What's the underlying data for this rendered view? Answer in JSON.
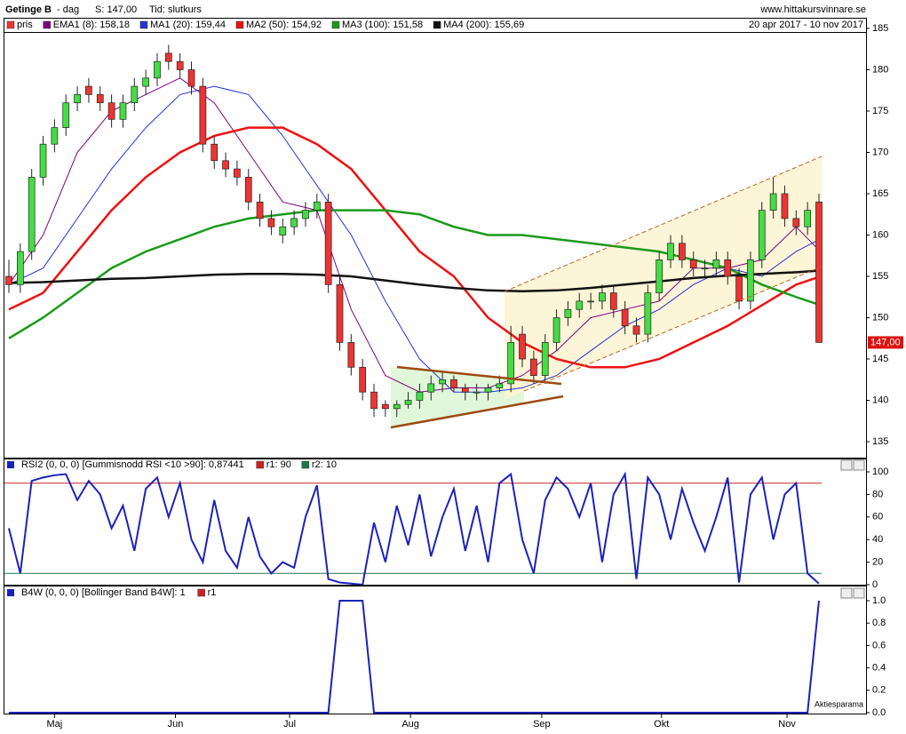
{
  "chart_data": [
    {
      "type": "candlestick",
      "title": "Getinge B",
      "subtitle": "- dag",
      "price_text": "S: 147,00",
      "mode_text": "Tid: slutkurs",
      "source": "www.hittakursvinnare.se",
      "date_range": "20 apr 2017 - 10 nov 2017",
      "name": "pris",
      "up_color": "#44dd44",
      "down_color": "#ee3333",
      "last_label": "147,00",
      "xlim": [
        0,
        71
      ],
      "ylim": [
        135,
        185
      ],
      "yticks": [
        135,
        140,
        145,
        150,
        155,
        160,
        165,
        170,
        175,
        180,
        185
      ],
      "open": [
        155,
        154,
        158,
        167,
        171,
        173,
        176,
        178,
        177,
        176,
        174,
        176,
        178,
        179,
        182,
        181,
        180,
        178,
        171,
        169,
        168,
        167,
        164,
        162,
        160,
        161,
        162,
        163,
        164,
        154,
        147,
        144,
        141,
        139.5,
        139,
        139.5,
        140,
        141,
        142,
        142.5,
        141.5,
        141,
        141,
        141.5,
        142,
        148,
        145,
        143,
        147,
        150,
        151,
        152,
        152,
        153,
        151,
        149,
        148,
        153,
        157,
        159,
        157,
        156,
        156,
        157,
        155,
        152,
        157,
        163,
        165,
        162,
        161,
        164
      ],
      "high": [
        157,
        159,
        168,
        172,
        174,
        177,
        178,
        179,
        178,
        177,
        177,
        179,
        180,
        182,
        183,
        182,
        181,
        179,
        172,
        170,
        169,
        168,
        165,
        163,
        162,
        163,
        164,
        165,
        165,
        155,
        148,
        145,
        142,
        140,
        140,
        141,
        142,
        143,
        143.5,
        143,
        142,
        142,
        142,
        143,
        149,
        149,
        146,
        148,
        151,
        152,
        153,
        153,
        154,
        154,
        152,
        150,
        154,
        158,
        160,
        160,
        158,
        157,
        158,
        158,
        156,
        158,
        164,
        167,
        166,
        163,
        164,
        165
      ],
      "low": [
        153,
        153,
        157,
        166,
        170,
        172,
        175,
        176,
        175,
        173,
        173,
        175,
        177,
        178,
        180,
        179,
        177,
        170,
        168,
        167,
        166,
        163,
        161,
        160,
        159,
        160,
        161,
        162,
        153,
        146,
        143,
        140,
        138,
        138,
        138,
        139,
        139,
        140,
        141,
        141,
        140,
        140,
        140,
        141,
        141,
        144,
        142,
        142,
        146,
        149,
        150,
        151,
        151,
        150,
        148,
        147,
        147,
        152,
        156,
        156,
        155,
        155,
        155,
        154,
        151,
        151,
        156,
        162,
        161,
        160,
        160,
        147
      ],
      "close": [
        154,
        158,
        167,
        171,
        173,
        176,
        177,
        177,
        176,
        174,
        176,
        178,
        179,
        181,
        181,
        180,
        178,
        171,
        169,
        168,
        167,
        164,
        162,
        161,
        161,
        162,
        163,
        164,
        154,
        147,
        144,
        141,
        139,
        139,
        139.5,
        140,
        141,
        142,
        142.5,
        141.5,
        141,
        141,
        141.5,
        142,
        147,
        145,
        143,
        147,
        150,
        151,
        152,
        152,
        153,
        151,
        149,
        148,
        153,
        157,
        159,
        157,
        156,
        156,
        157,
        155,
        152,
        157,
        163,
        165,
        162,
        161,
        163,
        147
      ],
      "series": [
        {
          "name": "EMA1 (8): 158,18",
          "color": "#800080",
          "x": [
            0,
            3,
            6,
            9,
            12,
            15,
            18,
            21,
            24,
            27,
            30,
            33,
            36,
            39,
            42,
            45,
            48,
            51,
            54,
            57,
            60,
            63,
            66,
            69,
            71
          ],
          "values": [
            154,
            160,
            170,
            175,
            177,
            179,
            176,
            170,
            164,
            163,
            151,
            143,
            141,
            141.5,
            141.5,
            143,
            146,
            150,
            151,
            152,
            156,
            156,
            157,
            161,
            158.18
          ]
        },
        {
          "name": "MA1 (20): 159,44",
          "color": "#2233dd",
          "x": [
            0,
            3,
            6,
            9,
            12,
            15,
            18,
            21,
            24,
            27,
            30,
            33,
            36,
            39,
            42,
            45,
            48,
            51,
            54,
            57,
            60,
            63,
            66,
            69,
            71
          ],
          "values": [
            154,
            156,
            162,
            168,
            173,
            177,
            178,
            177,
            172,
            166,
            160,
            152,
            145,
            141,
            141,
            141.5,
            143,
            146,
            149,
            151,
            154,
            156,
            155,
            158,
            159.44
          ]
        },
        {
          "name": "MA2 (50): 154,92",
          "color": "#ee1111",
          "x": [
            0,
            3,
            6,
            9,
            12,
            15,
            18,
            21,
            24,
            27,
            30,
            33,
            36,
            39,
            42,
            45,
            48,
            51,
            54,
            57,
            60,
            63,
            66,
            69,
            71
          ],
          "values": [
            151,
            153,
            158,
            163,
            167,
            170,
            172,
            173,
            173,
            171,
            168,
            163,
            158,
            155,
            150,
            147,
            145,
            144,
            144,
            145,
            147,
            149,
            151.5,
            154,
            154.92
          ]
        },
        {
          "name": "MA3 (100): 151,58",
          "color": "#1a9a1a",
          "x": [
            0,
            3,
            6,
            9,
            12,
            15,
            18,
            21,
            24,
            27,
            30,
            33,
            36,
            39,
            42,
            45,
            48,
            51,
            54,
            57,
            60,
            63,
            66,
            69,
            71
          ],
          "values": [
            147.5,
            150,
            153,
            156,
            158,
            159.5,
            161,
            162,
            162.5,
            163,
            163,
            163,
            162.5,
            161,
            160,
            160,
            159.5,
            159,
            158.5,
            158,
            157,
            156,
            154,
            152.5,
            151.58
          ]
        },
        {
          "name": "MA4 (200): 155,69",
          "color": "#111111",
          "x": [
            0,
            3,
            6,
            9,
            12,
            15,
            18,
            21,
            24,
            27,
            30,
            33,
            36,
            39,
            42,
            45,
            48,
            51,
            54,
            57,
            60,
            63,
            66,
            69,
            71
          ],
          "values": [
            154.2,
            154.3,
            154.5,
            154.7,
            154.8,
            155,
            155.2,
            155.3,
            155.3,
            155.2,
            155,
            154.5,
            154,
            153.6,
            153.3,
            153.2,
            153.3,
            153.6,
            154,
            154.4,
            154.8,
            155.1,
            155.3,
            155.5,
            155.69
          ]
        }
      ]
    },
    {
      "type": "line",
      "title": "RSI2 (0, 0, 0) [Gummisnodd RSI <10 >90]: 0,87441",
      "xlim": [
        0,
        71
      ],
      "ylim": [
        0,
        100
      ],
      "yticks": [
        0,
        20,
        40,
        60,
        80,
        100
      ],
      "series": [
        {
          "name": "RSI2",
          "color": "#1a22bb",
          "values": [
            50,
            10,
            92,
            95,
            97,
            98,
            75,
            92,
            80,
            50,
            70,
            30,
            85,
            95,
            60,
            90,
            40,
            20,
            75,
            30,
            15,
            60,
            25,
            10,
            20,
            15,
            60,
            88,
            5,
            2,
            1,
            0,
            55,
            20,
            70,
            35,
            80,
            25,
            60,
            85,
            30,
            70,
            20,
            90,
            98,
            40,
            10,
            75,
            95,
            85,
            60,
            90,
            20,
            80,
            98,
            5,
            95,
            80,
            40,
            85,
            55,
            30,
            60,
            95,
            2,
            80,
            95,
            40,
            80,
            90,
            10,
            1
          ]
        }
      ],
      "hlines": [
        {
          "name": "r1: 90",
          "value": 90,
          "color": "#cc2222"
        },
        {
          "name": "r2: 10",
          "value": 10,
          "color": "#1a7a4a"
        }
      ]
    },
    {
      "type": "line",
      "title": "B4W (0, 0, 0) [Bollinger Band B4W]: 1",
      "legend": "r1",
      "watermark": "Aktiesparama",
      "xlim": [
        0,
        71
      ],
      "ylim": [
        0,
        1
      ],
      "yticks": [
        {
          "value": 0,
          "label": "0.0"
        },
        {
          "value": 0.2,
          "label": "0.2"
        },
        {
          "value": 0.4,
          "label": "0.4"
        },
        {
          "value": 0.6,
          "label": "0.6"
        },
        {
          "value": 0.8,
          "label": "0.8"
        },
        {
          "value": 1,
          "label": "1.0"
        }
      ],
      "xticks": [
        {
          "value": 4,
          "label": "Maj"
        },
        {
          "value": 14.6,
          "label": "Jun"
        },
        {
          "value": 24.6,
          "label": "Jul"
        },
        {
          "value": 35.2,
          "label": "Aug"
        },
        {
          "value": 46.7,
          "label": "Sep"
        },
        {
          "value": 57.2,
          "label": "Okt"
        },
        {
          "value": 68.2,
          "label": "Nov"
        }
      ],
      "series": [
        {
          "name": "B4W",
          "color": "#1a22bb",
          "values": [
            0,
            0,
            0,
            0,
            0,
            0,
            0,
            0,
            0,
            0,
            0,
            0,
            0,
            0,
            0,
            0,
            0,
            0,
            0,
            0,
            0,
            0,
            0,
            0,
            0,
            0,
            0,
            0,
            0,
            1,
            1,
            1,
            0,
            0,
            0,
            0,
            0,
            0,
            0,
            0,
            0,
            0,
            0,
            0,
            0,
            0,
            0,
            0,
            0,
            0,
            0,
            0,
            0,
            0,
            0,
            0,
            0,
            0,
            0,
            0,
            0,
            0,
            0,
            0,
            0,
            0,
            0,
            0,
            0,
            0,
            0,
            1
          ]
        }
      ]
    }
  ]
}
